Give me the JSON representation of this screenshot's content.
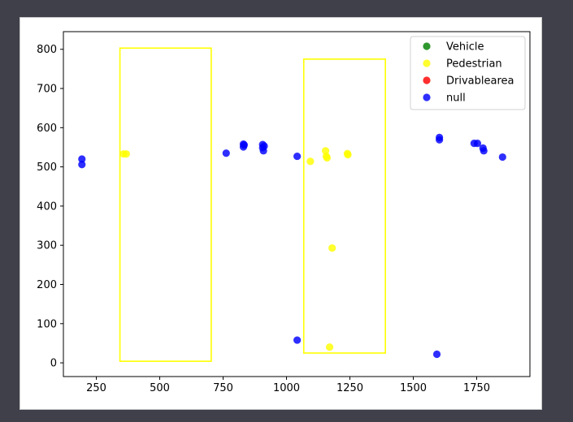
{
  "chart_data": {
    "type": "scatter",
    "title": "",
    "xlabel": "",
    "ylabel": "",
    "xlim": [
      120,
      1960
    ],
    "ylim": [
      -35,
      845
    ],
    "x_ticks": [
      250,
      500,
      750,
      1000,
      1250,
      1500,
      1750
    ],
    "x_tick_labels": [
      "250",
      "500",
      "750",
      "1000",
      "1250",
      "1500",
      "1750"
    ],
    "y_ticks": [
      0,
      100,
      200,
      300,
      400,
      500,
      600,
      700,
      800
    ],
    "y_tick_labels": [
      "0",
      "100",
      "200",
      "300",
      "400",
      "500",
      "600",
      "700",
      "800"
    ],
    "legend_position": "top-right",
    "grid": false,
    "series": [
      {
        "name": "Vehicle",
        "color": "#008000",
        "points": []
      },
      {
        "name": "Pedestrian",
        "color": "#ffff00",
        "points": [
          [
            357,
            533
          ],
          [
            368,
            533
          ],
          [
            1094,
            514
          ],
          [
            1154,
            541
          ],
          [
            1157,
            527
          ],
          [
            1160,
            523
          ],
          [
            1180,
            293
          ],
          [
            1240,
            534
          ],
          [
            1242,
            531
          ],
          [
            1170,
            40
          ]
        ]
      },
      {
        "name": "Drivablearea",
        "color": "#ff0000",
        "points": []
      },
      {
        "name": "null",
        "color": "#0000ff",
        "points": [
          [
            193,
            520
          ],
          [
            193,
            506
          ],
          [
            762,
            535
          ],
          [
            830,
            558
          ],
          [
            830,
            551
          ],
          [
            833,
            556
          ],
          [
            906,
            557
          ],
          [
            906,
            549
          ],
          [
            909,
            541
          ],
          [
            912,
            553
          ],
          [
            1042,
            527
          ],
          [
            1042,
            58
          ],
          [
            1603,
            575
          ],
          [
            1603,
            569
          ],
          [
            1593,
            22
          ],
          [
            1740,
            560
          ],
          [
            1753,
            560
          ],
          [
            1775,
            548
          ],
          [
            1778,
            541
          ],
          [
            1852,
            525
          ]
        ]
      }
    ],
    "boxes": [
      {
        "color": "#ffff00",
        "x": [
          343,
          703
        ],
        "y": [
          4,
          803
        ]
      },
      {
        "color": "#ffff00",
        "x": [
          1068,
          1390
        ],
        "y": [
          25,
          775
        ]
      }
    ]
  }
}
